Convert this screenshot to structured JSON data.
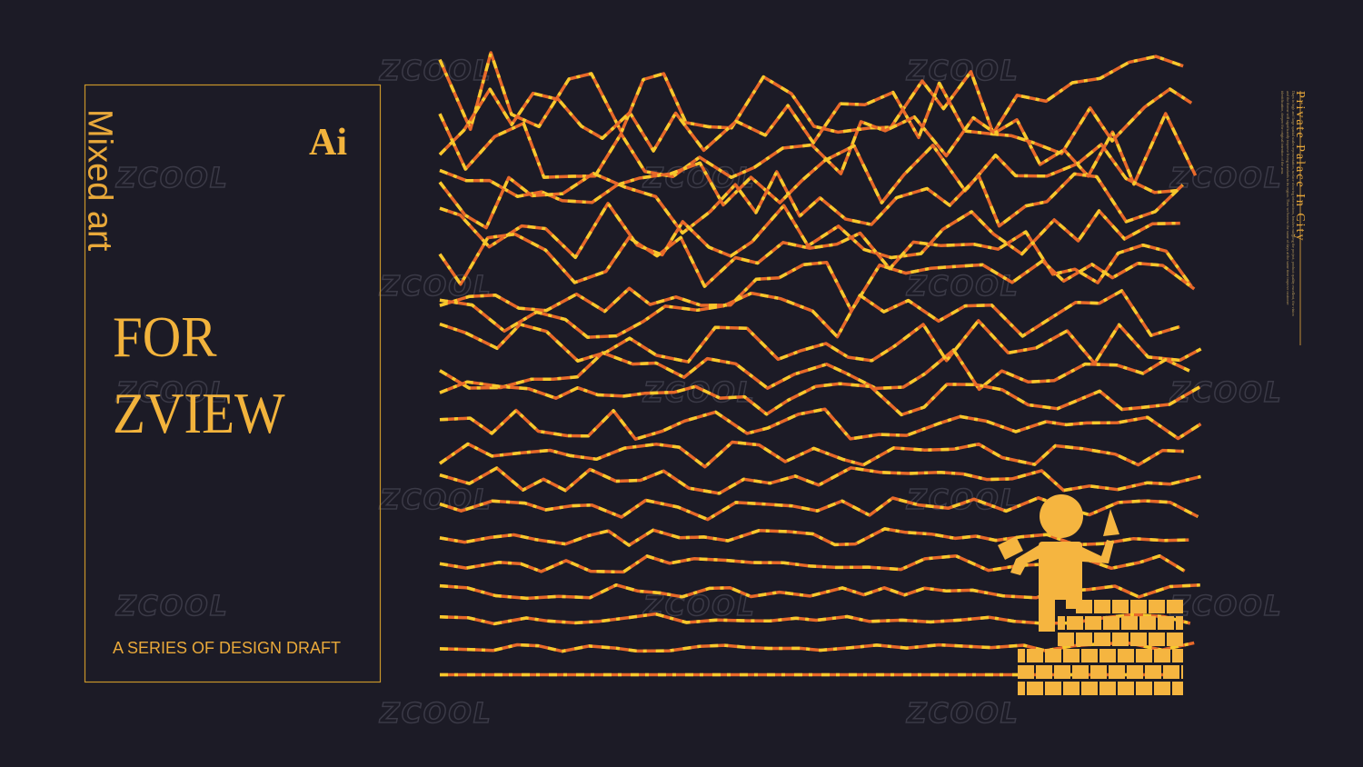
{
  "panel": {
    "subtitle": "Mixed art",
    "badge": "Ai",
    "title_lines": [
      "FOR",
      "ZVIEW"
    ],
    "caption": "A SERIES OF DESIGN DRAFT"
  },
  "side": {
    "heading": "Private Palace In City",
    "body": "Days in high and large spatial scales representation, surface showing interactions, brushes mingling the project, product quality excellent, the vision and the theme will significantly improve living standards in its region. Then we borrow the name of days at the same time improve customer identification, deepen the original intention of the area."
  },
  "watermark": "ZCOOL"
}
